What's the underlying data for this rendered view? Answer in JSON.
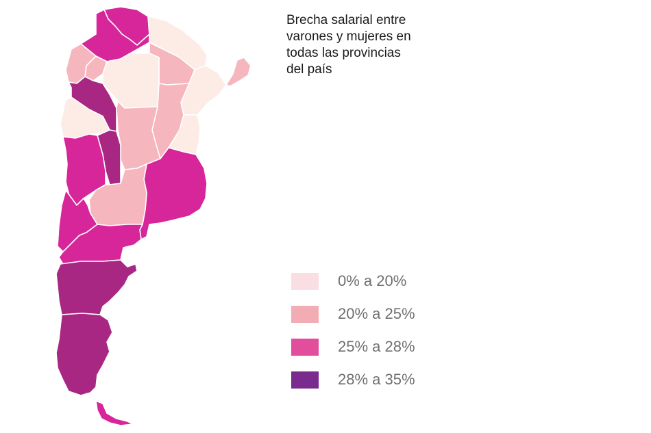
{
  "title_lines": [
    "Brecha salarial entre",
    "varones y mujeres en",
    "todas las provincias",
    "del país"
  ],
  "legend": [
    {
      "label": "0% a 20%",
      "color": "#f9dfe3"
    },
    {
      "label": "20% a 25%",
      "color": "#f2acb4"
    },
    {
      "label": "25% a 28%",
      "color": "#e24d9c"
    },
    {
      "label": "28% a 35%",
      "color": "#7a2b8e"
    }
  ],
  "map_colors": {
    "band_0_20": "#fdebe6",
    "band_20_25": "#f5b6bd",
    "band_25_28": "#d7259a",
    "band_28_35": "#a82782"
  }
}
